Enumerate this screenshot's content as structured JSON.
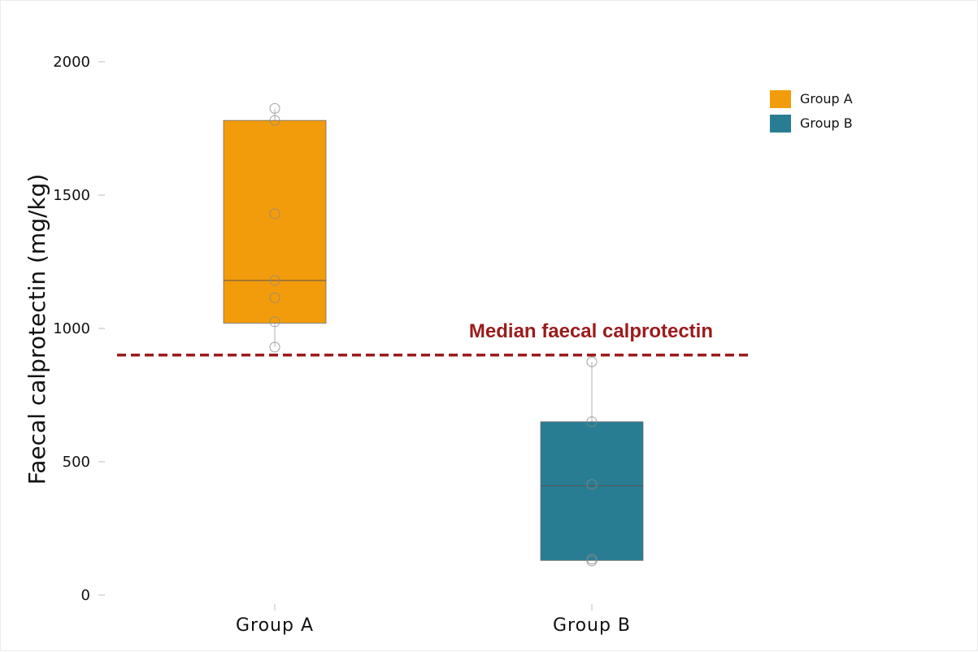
{
  "chart_data": {
    "type": "box",
    "title": "",
    "xlabel": "",
    "ylabel": "Faecal calprotectin (mg/kg)",
    "ylim": [
      0,
      2000
    ],
    "yticks": [
      0,
      500,
      1000,
      1500,
      2000
    ],
    "grid": false,
    "legend_position": "top-right",
    "categories": [
      "Group  A",
      "Group  B"
    ],
    "series": [
      {
        "name": "Group A",
        "color": "#f39c0b",
        "box": {
          "whisker_low": 930,
          "q1": 1020,
          "median": 1180,
          "q3": 1780,
          "whisker_high": 1825
        },
        "points": [
          1825,
          1780,
          1430,
          1180,
          1115,
          1025,
          930
        ]
      },
      {
        "name": "Group B",
        "color": "#287d93",
        "box": {
          "whisker_low": 130,
          "q1": 130,
          "median": 410,
          "q3": 650,
          "whisker_high": 875
        },
        "points": [
          875,
          650,
          415,
          135,
          128
        ]
      }
    ],
    "reference_line": {
      "value": 900,
      "label": "Median faecal calprotectin",
      "color": "#9b1b1b",
      "style": "dashed"
    }
  }
}
